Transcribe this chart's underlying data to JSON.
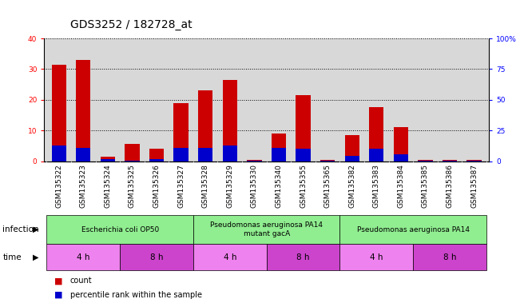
{
  "title": "GDS3252 / 182728_at",
  "samples": [
    "GSM135322",
    "GSM135323",
    "GSM135324",
    "GSM135325",
    "GSM135326",
    "GSM135327",
    "GSM135328",
    "GSM135329",
    "GSM135330",
    "GSM135340",
    "GSM135355",
    "GSM135365",
    "GSM135382",
    "GSM135383",
    "GSM135384",
    "GSM135385",
    "GSM135386",
    "GSM135387"
  ],
  "counts": [
    31.5,
    33.0,
    1.5,
    5.5,
    4.0,
    19.0,
    23.0,
    26.5,
    0.5,
    9.0,
    21.5,
    0.3,
    8.5,
    17.5,
    11.0,
    0.3,
    0.3,
    0.3
  ],
  "percentile_ranks": [
    13.0,
    11.0,
    1.5,
    0.3,
    2.0,
    11.0,
    10.5,
    12.5,
    0.3,
    11.0,
    10.0,
    0.3,
    4.5,
    10.0,
    5.5,
    0.3,
    0.3,
    0.3
  ],
  "ylim_left": [
    0,
    40
  ],
  "ylim_right": [
    0,
    100
  ],
  "yticks_left": [
    0,
    10,
    20,
    30,
    40
  ],
  "yticks_right": [
    0,
    25,
    50,
    75,
    100
  ],
  "ytick_labels_right": [
    "0",
    "25",
    "50",
    "75",
    "100%"
  ],
  "bar_color_red": "#cc0000",
  "bar_color_blue": "#0000cc",
  "bar_width": 0.6,
  "infection_groups": [
    {
      "label": "Escherichia coli OP50",
      "start": 0,
      "end": 6,
      "color": "#90ee90"
    },
    {
      "label": "Pseudomonas aeruginosa PA14\nmutant gacA",
      "start": 6,
      "end": 12,
      "color": "#90ee90"
    },
    {
      "label": "Pseudomonas aeruginosa PA14",
      "start": 12,
      "end": 18,
      "color": "#90ee90"
    }
  ],
  "time_groups": [
    {
      "label": "4 h",
      "start": 0,
      "end": 3,
      "color": "#ee82ee"
    },
    {
      "label": "8 h",
      "start": 3,
      "end": 6,
      "color": "#cc44cc"
    },
    {
      "label": "4 h",
      "start": 6,
      "end": 9,
      "color": "#ee82ee"
    },
    {
      "label": "8 h",
      "start": 9,
      "end": 12,
      "color": "#cc44cc"
    },
    {
      "label": "4 h",
      "start": 12,
      "end": 15,
      "color": "#ee82ee"
    },
    {
      "label": "8 h",
      "start": 15,
      "end": 18,
      "color": "#cc44cc"
    }
  ],
  "plot_bg_color": "#d8d8d8",
  "xtick_bg_color": "#b8b8b8",
  "infection_label": "infection",
  "time_label": "time",
  "legend_count_label": "count",
  "legend_percentile_label": "percentile rank within the sample",
  "title_fontsize": 10,
  "tick_fontsize": 6.5,
  "annotation_fontsize": 7.5,
  "legend_fontsize": 7
}
